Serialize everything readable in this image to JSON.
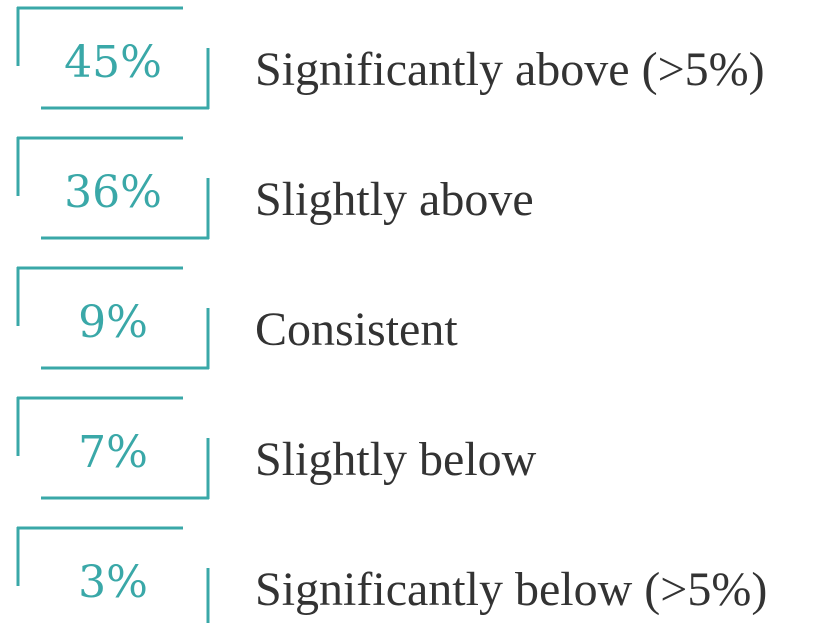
{
  "items": [
    {
      "value": "45%",
      "label": "Significantly above (>5%)"
    },
    {
      "value": "36%",
      "label": "Slightly above"
    },
    {
      "value": "9%",
      "label": "Consistent"
    },
    {
      "value": "7%",
      "label": "Slightly below"
    },
    {
      "value": "3%",
      "label": "Significantly below (>5%)"
    }
  ]
}
